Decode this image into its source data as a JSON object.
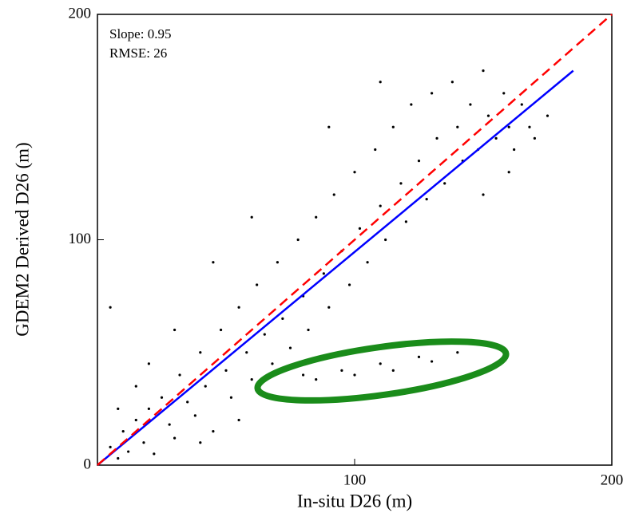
{
  "chart_data": {
    "type": "scatter",
    "xlabel": "In-situ D26 (m)",
    "ylabel": "GDEM2 Derived D26 (m)",
    "annotations": [
      "Slope: 0.95",
      "RMSE: 26"
    ],
    "xlim": [
      0,
      200
    ],
    "ylim": [
      0,
      200
    ],
    "xticks": [
      100,
      200
    ],
    "yticks": [
      0,
      100,
      200
    ],
    "series": [
      {
        "type": "scatter",
        "color": "#000000",
        "x": [
          5,
          8,
          10,
          12,
          15,
          18,
          20,
          22,
          25,
          28,
          30,
          32,
          35,
          38,
          40,
          42,
          45,
          48,
          50,
          52,
          55,
          58,
          60,
          62,
          65,
          68,
          70,
          72,
          75,
          78,
          80,
          82,
          85,
          88,
          90,
          92,
          95,
          98,
          100,
          102,
          105,
          108,
          110,
          112,
          115,
          118,
          120,
          122,
          125,
          128,
          130,
          132,
          135,
          138,
          140,
          142,
          145,
          148,
          150,
          152,
          155,
          158,
          160,
          162,
          165,
          168,
          170,
          30,
          20,
          60,
          45,
          90,
          110,
          80,
          95,
          110,
          125,
          140,
          85,
          100,
          115,
          130,
          150,
          160,
          40,
          55,
          70,
          8,
          15,
          175,
          5
        ],
        "y": [
          8,
          3,
          15,
          6,
          20,
          10,
          25,
          5,
          30,
          18,
          12,
          40,
          28,
          22,
          50,
          35,
          15,
          60,
          42,
          30,
          70,
          50,
          38,
          80,
          58,
          45,
          90,
          65,
          52,
          100,
          75,
          60,
          110,
          85,
          70,
          120,
          95,
          80,
          130,
          105,
          90,
          140,
          115,
          100,
          150,
          125,
          108,
          160,
          135,
          118,
          165,
          145,
          125,
          170,
          150,
          135,
          160,
          140,
          175,
          155,
          145,
          165,
          150,
          140,
          160,
          150,
          145,
          60,
          45,
          110,
          90,
          150,
          170,
          40,
          42,
          45,
          48,
          50,
          38,
          40,
          42,
          46,
          120,
          130,
          10,
          20,
          30,
          25,
          35,
          155,
          70
        ]
      },
      {
        "type": "line",
        "color": "#0000ff",
        "dash": false,
        "x": [
          0,
          185
        ],
        "y": [
          0,
          175
        ]
      },
      {
        "type": "line",
        "color": "#ff0000",
        "dash": true,
        "x": [
          0,
          200
        ],
        "y": [
          0,
          200
        ]
      }
    ]
  }
}
